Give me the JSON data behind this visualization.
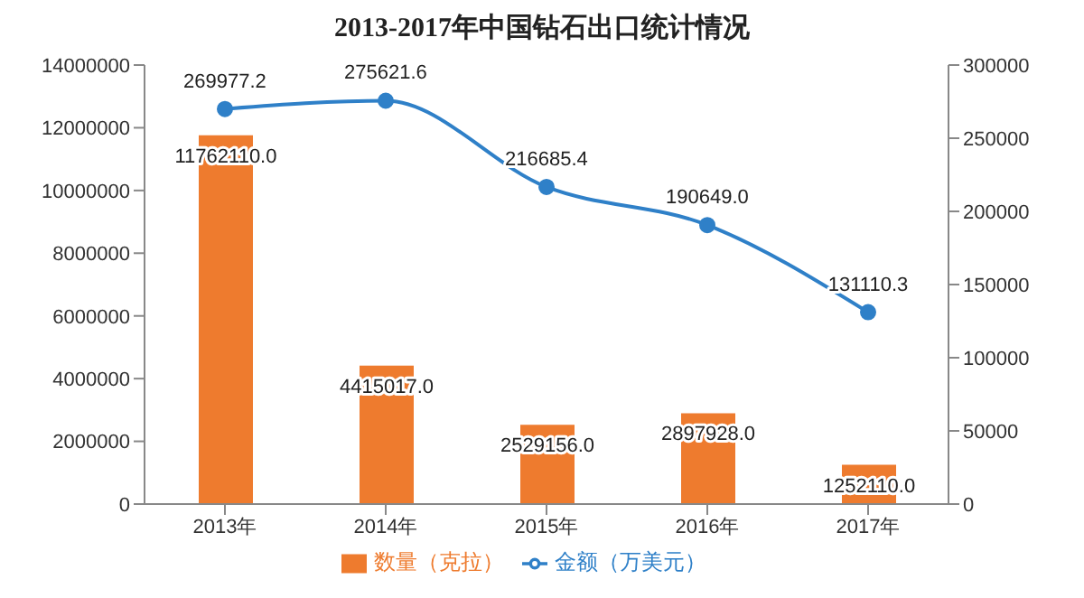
{
  "chart_data": {
    "type": "bar",
    "title": "2013-2017年中国钻石出口统计情况",
    "categories": [
      "2013年",
      "2014年",
      "2015年",
      "2016年",
      "2017年"
    ],
    "series": [
      {
        "name": "数量（克拉）",
        "color": "#ee7b2e",
        "values": [
          11762110.0,
          4415017.0,
          2529156.0,
          2897928.0,
          1252110.0
        ],
        "value_labels": [
          "11762110.0",
          "4415017.0",
          "2529156.0",
          "2897928.0",
          "1252110.0"
        ]
      },
      {
        "name": "金额（万美元）",
        "type": "line",
        "axis": "y2",
        "color": "#2f80c8",
        "values": [
          269977.2,
          275621.6,
          216685.4,
          190649.0,
          131110.3
        ],
        "value_labels": [
          "269977.2",
          "275621.6",
          "216685.4",
          "190649.0",
          "131110.3"
        ]
      }
    ],
    "ylim": [
      0,
      14000000
    ],
    "yticks": [
      0,
      2000000,
      4000000,
      6000000,
      8000000,
      10000000,
      12000000,
      14000000
    ],
    "y2lim": [
      0,
      300000
    ],
    "y2ticks": [
      0,
      50000,
      100000,
      150000,
      200000,
      250000,
      300000
    ],
    "grid": false,
    "legend": "bottom",
    "marker": "circle"
  }
}
